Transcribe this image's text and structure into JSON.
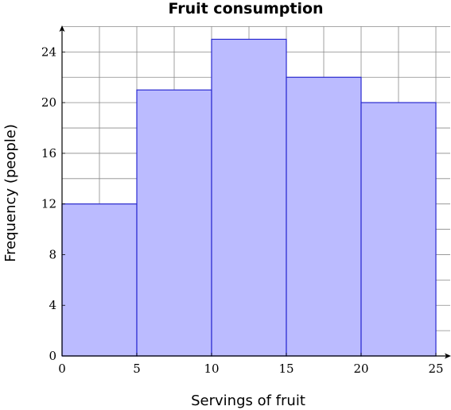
{
  "chart_data": {
    "type": "bar",
    "title": "Fruit consumption",
    "xlabel": "Servings of fruit",
    "ylabel": "Frequency (people)",
    "bins": [
      [
        0,
        5
      ],
      [
        5,
        10
      ],
      [
        10,
        15
      ],
      [
        15,
        20
      ],
      [
        20,
        25
      ]
    ],
    "values": [
      12,
      21,
      25,
      22,
      20
    ],
    "xlim": [
      0,
      25
    ],
    "ylim": [
      0,
      26
    ],
    "xticks": [
      0,
      5,
      10,
      15,
      20,
      25
    ],
    "yticks": [
      0,
      4,
      8,
      12,
      16,
      20,
      24
    ],
    "x_grid_step": 2.5,
    "y_grid_step": 2,
    "grid": true,
    "colors": {
      "bar_fill": "#bbbbff",
      "bar_stroke": "#2a2ad0",
      "grid": "#8a8a8a"
    }
  }
}
